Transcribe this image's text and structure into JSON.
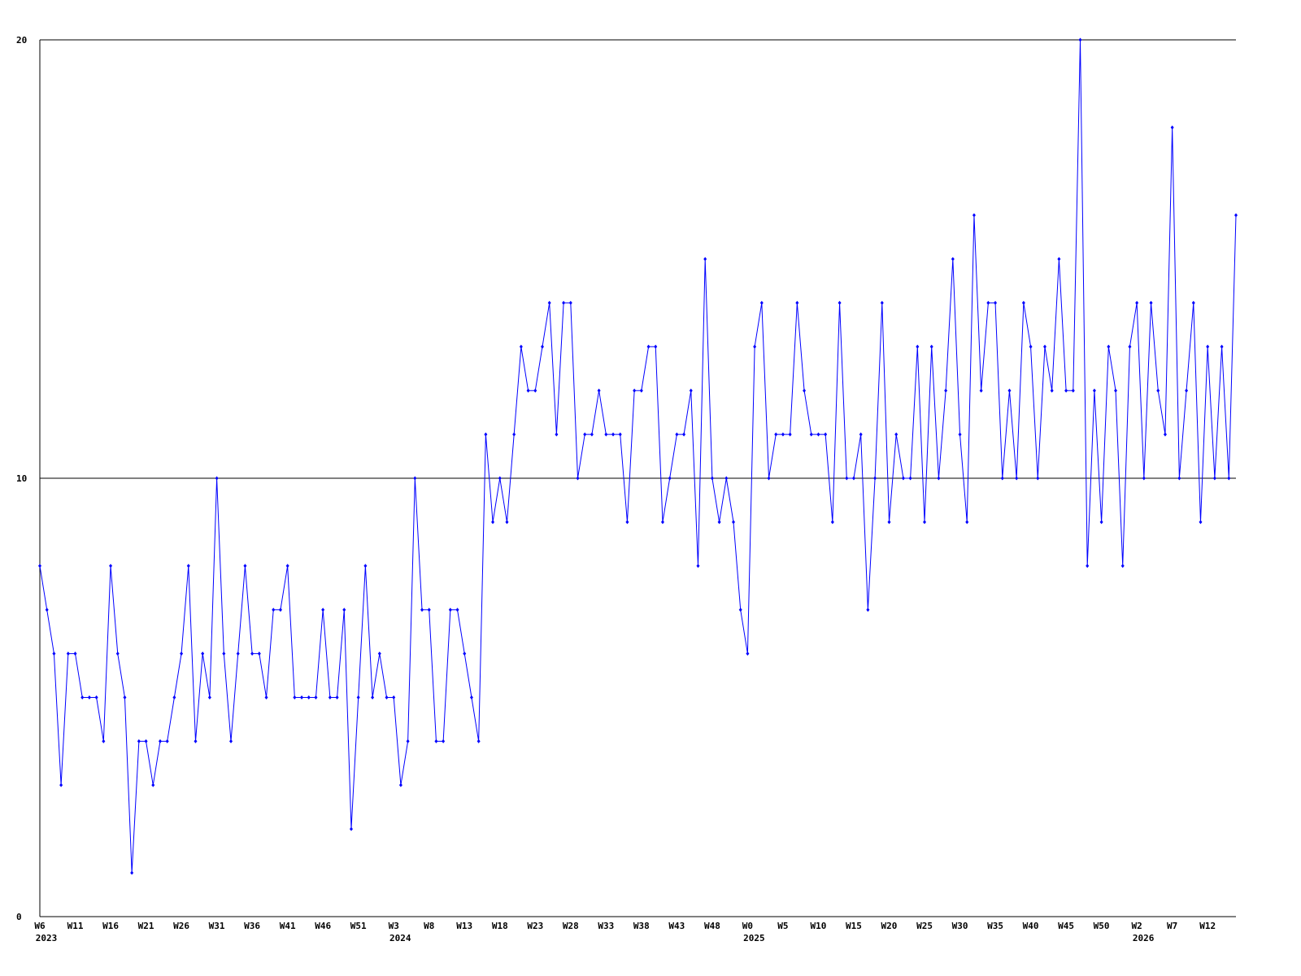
{
  "chart_data": {
    "type": "line",
    "color": "#0000ff",
    "grid": true,
    "ylim": [
      0,
      20
    ],
    "yticks": [
      0,
      10,
      20
    ],
    "categories": [
      "W6",
      null,
      null,
      null,
      null,
      "W11",
      null,
      null,
      null,
      null,
      "W16",
      null,
      null,
      null,
      null,
      "W21",
      null,
      null,
      null,
      null,
      "W26",
      null,
      null,
      null,
      null,
      "W31",
      null,
      null,
      null,
      null,
      "W36",
      null,
      null,
      null,
      null,
      "W41",
      null,
      null,
      null,
      null,
      "W46",
      null,
      null,
      null,
      null,
      "W51",
      null,
      null,
      null,
      null,
      "W3",
      null,
      null,
      null,
      null,
      "W8",
      null,
      null,
      null,
      null,
      "W13",
      null,
      null,
      null,
      null,
      "W18",
      null,
      null,
      null,
      null,
      "W23",
      null,
      null,
      null,
      null,
      "W28",
      null,
      null,
      null,
      null,
      "W33",
      null,
      null,
      null,
      null,
      "W38",
      null,
      null,
      null,
      null,
      "W43",
      null,
      null,
      null,
      null,
      "W48",
      null,
      null,
      null,
      null,
      "W0",
      null,
      null,
      null,
      null,
      "W5",
      null,
      null,
      null,
      null,
      "W10",
      null,
      null,
      null,
      null,
      "W15",
      null,
      null,
      null,
      null,
      "W20",
      null,
      null,
      null,
      null,
      "W25",
      null,
      null,
      null,
      null,
      "W30",
      null,
      null,
      null,
      null,
      "W35",
      null,
      null,
      null,
      null,
      "W40",
      null,
      null,
      null,
      null,
      "W45",
      null,
      null,
      null,
      null,
      "W50",
      null,
      null,
      null,
      null,
      "W2",
      null,
      null,
      null,
      null,
      "W7",
      null,
      null,
      null,
      null,
      "W12",
      null,
      null,
      null,
      null
    ],
    "years": [
      "2023",
      null,
      null,
      null,
      null,
      null,
      null,
      null,
      null,
      null,
      null,
      null,
      null,
      null,
      null,
      null,
      null,
      null,
      null,
      null,
      null,
      null,
      null,
      null,
      null,
      null,
      null,
      null,
      null,
      null,
      null,
      null,
      null,
      null,
      null,
      null,
      null,
      null,
      null,
      null,
      null,
      null,
      null,
      null,
      null,
      null,
      null,
      null,
      null,
      null,
      "2024",
      null,
      null,
      null,
      null,
      null,
      null,
      null,
      null,
      null,
      null,
      null,
      null,
      null,
      null,
      null,
      null,
      null,
      null,
      null,
      null,
      null,
      null,
      null,
      null,
      null,
      null,
      null,
      null,
      null,
      null,
      null,
      null,
      null,
      null,
      null,
      null,
      null,
      null,
      null,
      null,
      null,
      null,
      null,
      null,
      null,
      null,
      null,
      null,
      null,
      "2025",
      null,
      null,
      null,
      null,
      null,
      null,
      null,
      null,
      null,
      null,
      null,
      null,
      null,
      null,
      null,
      null,
      null,
      null,
      null,
      null,
      null,
      null,
      null,
      null,
      null,
      null,
      null,
      null,
      null,
      null,
      null,
      null,
      null,
      null,
      null,
      null,
      null,
      null,
      null,
      null,
      null,
      null,
      null,
      null,
      null,
      null,
      null,
      null,
      null,
      null,
      null,
      null,
      null,
      null,
      "2026",
      null,
      null,
      null,
      null,
      null,
      null,
      null,
      null,
      null,
      null,
      null,
      null,
      null,
      null
    ],
    "values": [
      8,
      7,
      6,
      3,
      6,
      6,
      5,
      5,
      5,
      4,
      8,
      6,
      5,
      1,
      4,
      4,
      3,
      4,
      4,
      5,
      6,
      8,
      4,
      6,
      5,
      10,
      6,
      4,
      6,
      8,
      6,
      6,
      5,
      7,
      7,
      8,
      5,
      5,
      5,
      5,
      7,
      5,
      5,
      7,
      2,
      5,
      8,
      5,
      6,
      5,
      5,
      3,
      4,
      10,
      7,
      7,
      4,
      4,
      7,
      7,
      6,
      5,
      4,
      11,
      9,
      10,
      9,
      11,
      13,
      12,
      12,
      13,
      14,
      11,
      14,
      14,
      10,
      11,
      11,
      12,
      11,
      11,
      11,
      9,
      12,
      12,
      13,
      13,
      9,
      10,
      11,
      11,
      12,
      8,
      15,
      10,
      9,
      10,
      9,
      7,
      6,
      13,
      14,
      10,
      11,
      11,
      11,
      14,
      12,
      11,
      11,
      11,
      9,
      14,
      10,
      10,
      11,
      7,
      10,
      14,
      9,
      11,
      10,
      10,
      13,
      9,
      13,
      10,
      12,
      15,
      11,
      9,
      16,
      12,
      14,
      14,
      10,
      12,
      10,
      14,
      13,
      10,
      13,
      12,
      15,
      12,
      12,
      20,
      8,
      12,
      9,
      13,
      12,
      8,
      13,
      14,
      10,
      14,
      12,
      11,
      18,
      10,
      12,
      14,
      9,
      13,
      10,
      13,
      10,
      16
    ]
  }
}
